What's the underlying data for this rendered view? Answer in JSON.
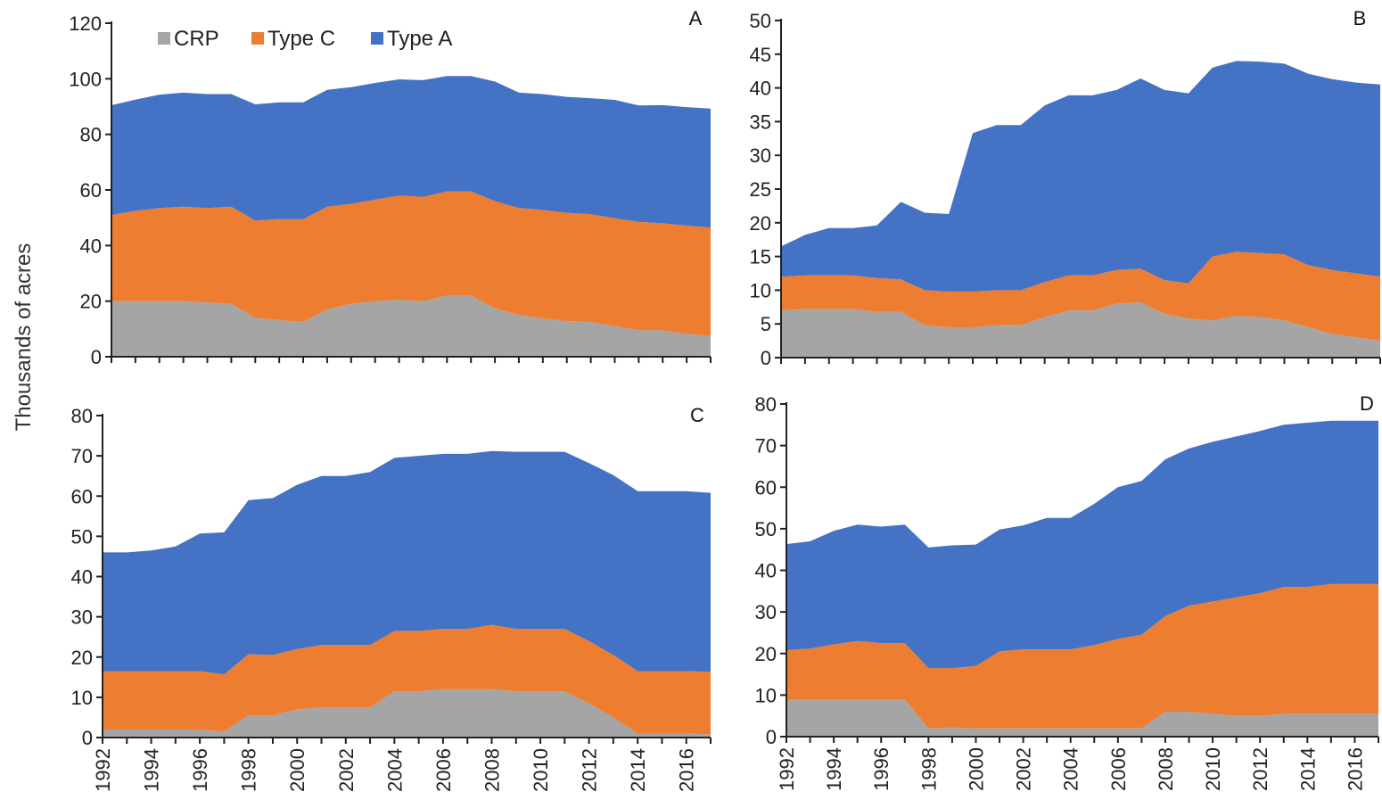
{
  "figure": {
    "ylabel": "Thousands of acres",
    "legend": [
      {
        "name": "CRP",
        "color": "#a5a5a5"
      },
      {
        "name": "Type C",
        "color": "#ed7d31"
      },
      {
        "name": "Type A",
        "color": "#4472c4"
      }
    ]
  },
  "chart_data": [
    {
      "type": "area",
      "stacked": true,
      "panel": "A",
      "x": [
        1992,
        1993,
        1994,
        1995,
        1996,
        1997,
        1998,
        1999,
        2000,
        2001,
        2002,
        2003,
        2004,
        2005,
        2006,
        2007,
        2008,
        2009,
        2010,
        2011,
        2012,
        2013,
        2014,
        2015,
        2016,
        2017
      ],
      "ylim": [
        0,
        120
      ],
      "yticks": [
        0,
        20,
        40,
        60,
        80,
        100,
        120
      ],
      "xtick_labels": [],
      "legend_position": "top-left",
      "series": [
        {
          "name": "CRP",
          "color": "#a5a5a5",
          "values": [
            20,
            20,
            20,
            20,
            19.5,
            19,
            14,
            13.2,
            12.5,
            17,
            19,
            20,
            20.5,
            20,
            22,
            22,
            17.5,
            15,
            13.8,
            12.8,
            12.5,
            11,
            9.5,
            9.5,
            8.2,
            7.5
          ]
        },
        {
          "name": "Type C",
          "color": "#ed7d31",
          "values": [
            31,
            32.5,
            33.5,
            34,
            34,
            35,
            35,
            36.3,
            37,
            37,
            36,
            36.5,
            37.5,
            37.5,
            37.5,
            37.5,
            38.5,
            38.5,
            39,
            39,
            38.8,
            38.8,
            39,
            38.5,
            39,
            39
          ]
        },
        {
          "name": "Type A",
          "color": "#4472c4",
          "values": [
            39.5,
            40,
            40.8,
            41,
            41,
            40.5,
            41.8,
            42,
            42,
            42,
            42,
            42,
            41.8,
            42,
            41.5,
            41.5,
            43,
            41.5,
            41.7,
            41.7,
            41.7,
            42.6,
            41.9,
            42.5,
            42.6,
            42.8
          ]
        }
      ]
    },
    {
      "type": "area",
      "stacked": true,
      "panel": "B",
      "x": [
        1992,
        1993,
        1994,
        1995,
        1996,
        1997,
        1998,
        1999,
        2000,
        2001,
        2002,
        2003,
        2004,
        2005,
        2006,
        2007,
        2008,
        2009,
        2010,
        2011,
        2012,
        2013,
        2014,
        2015,
        2016,
        2017
      ],
      "ylim": [
        0,
        50
      ],
      "yticks": [
        0,
        5,
        10,
        15,
        20,
        25,
        30,
        35,
        40,
        45,
        50
      ],
      "xtick_labels": [],
      "series": [
        {
          "name": "CRP",
          "color": "#a5a5a5",
          "values": [
            7,
            7.2,
            7.2,
            7.2,
            6.8,
            6.8,
            4.8,
            4.5,
            4.5,
            4.8,
            4.8,
            6,
            7,
            7,
            8,
            8.2,
            6.5,
            5.8,
            5.5,
            6.2,
            6,
            5.5,
            4.5,
            3.5,
            3,
            2.5
          ]
        },
        {
          "name": "Type C",
          "color": "#ed7d31",
          "values": [
            5,
            5,
            5,
            5,
            5,
            4.8,
            5.2,
            5.3,
            5.3,
            5.2,
            5.2,
            5.2,
            5.2,
            5.2,
            5,
            5,
            5,
            5.2,
            9.5,
            9.5,
            9.5,
            9.8,
            9.2,
            9.5,
            9.5,
            9.5
          ]
        },
        {
          "name": "Type A",
          "color": "#4472c4",
          "values": [
            4.5,
            6,
            7,
            7,
            7.8,
            11.5,
            11.5,
            11.5,
            23.5,
            24.5,
            24.5,
            26.2,
            26.7,
            26.7,
            26.7,
            28.2,
            28.2,
            28.2,
            28,
            28.3,
            28.4,
            28.3,
            28.4,
            28.3,
            28.3,
            28.5
          ]
        }
      ]
    },
    {
      "type": "area",
      "stacked": true,
      "panel": "C",
      "x": [
        1992,
        1993,
        1994,
        1995,
        1996,
        1997,
        1998,
        1999,
        2000,
        2001,
        2002,
        2003,
        2004,
        2005,
        2006,
        2007,
        2008,
        2009,
        2010,
        2011,
        2012,
        2013,
        2014,
        2015,
        2016,
        2017
      ],
      "ylim": [
        0,
        80
      ],
      "yticks": [
        0,
        10,
        20,
        30,
        40,
        50,
        60,
        70,
        80
      ],
      "xtick_labels": [
        "1992",
        "1994",
        "1996",
        "1998",
        "2000",
        "2002",
        "2004",
        "2006",
        "2008",
        "2010",
        "2012",
        "2014",
        "2016"
      ],
      "series": [
        {
          "name": "CRP",
          "color": "#a5a5a5",
          "values": [
            2,
            2,
            2,
            2,
            2,
            1.5,
            5.5,
            5.5,
            7,
            7.5,
            7.5,
            7.5,
            11.5,
            11.5,
            12,
            12,
            12,
            11.5,
            11.5,
            11.5,
            8.5,
            5,
            1,
            1,
            1,
            0.8
          ]
        },
        {
          "name": "Type C",
          "color": "#ed7d31",
          "values": [
            14.5,
            14.5,
            14.5,
            14.5,
            14.5,
            14.2,
            15.2,
            15,
            15,
            15.5,
            15.5,
            15.5,
            15,
            15,
            15,
            15,
            16,
            15.5,
            15.5,
            15.5,
            15.5,
            15.5,
            15.5,
            15.5,
            15.5,
            15.5
          ]
        },
        {
          "name": "Type A",
          "color": "#4472c4",
          "values": [
            29.5,
            29.5,
            30,
            31,
            34.2,
            35.3,
            38.3,
            39,
            40.8,
            42,
            42,
            43,
            43,
            43.5,
            43.5,
            43.5,
            43.2,
            44,
            44,
            44,
            44.2,
            44.7,
            44.7,
            44.7,
            44.7,
            44.5
          ]
        }
      ]
    },
    {
      "type": "area",
      "stacked": true,
      "panel": "D",
      "x": [
        1992,
        1993,
        1994,
        1995,
        1996,
        1997,
        1998,
        1999,
        2000,
        2001,
        2002,
        2003,
        2004,
        2005,
        2006,
        2007,
        2008,
        2009,
        2010,
        2011,
        2012,
        2013,
        2014,
        2015,
        2016,
        2017
      ],
      "ylim": [
        0,
        80
      ],
      "yticks": [
        0,
        10,
        20,
        30,
        40,
        50,
        60,
        70,
        80
      ],
      "xtick_labels": [
        "1992",
        "1994",
        "1996",
        "1998",
        "2000",
        "2002",
        "2004",
        "2006",
        "2008",
        "2010",
        "2012",
        "2014",
        "2016"
      ],
      "series": [
        {
          "name": "CRP",
          "color": "#a5a5a5",
          "values": [
            9,
            9,
            9,
            9,
            9,
            9,
            2,
            2.2,
            2,
            2,
            2,
            2,
            2,
            2,
            2,
            2,
            6,
            6,
            5.5,
            5,
            5,
            5.5,
            5.5,
            5.5,
            5.5,
            5.5
          ]
        },
        {
          "name": "Type C",
          "color": "#ed7d31",
          "values": [
            11.8,
            12.2,
            13.2,
            14,
            13.5,
            13.5,
            14.5,
            14.3,
            15,
            18.5,
            19,
            19,
            19,
            20,
            21.5,
            22.5,
            23,
            25.5,
            27,
            28.5,
            29.5,
            30.5,
            30.5,
            31.2,
            31.2,
            31.2
          ]
        },
        {
          "name": "Type A",
          "color": "#4472c4",
          "values": [
            25.5,
            25.8,
            27.3,
            28,
            28,
            28.5,
            29,
            29.5,
            29.2,
            29.3,
            29.8,
            31.6,
            31.6,
            34,
            36.5,
            37,
            37.7,
            37.8,
            38.4,
            38.7,
            39,
            39,
            39.5,
            39.3,
            39.3,
            39.3
          ]
        }
      ]
    }
  ]
}
